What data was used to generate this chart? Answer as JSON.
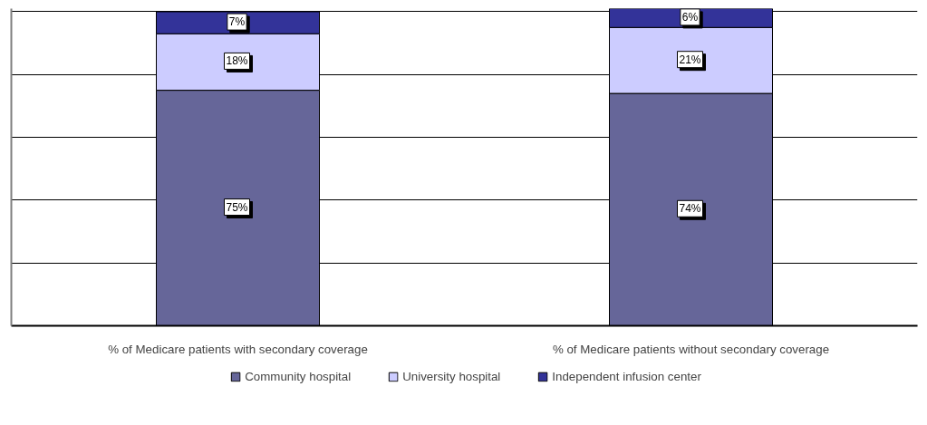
{
  "chart_data": {
    "type": "bar",
    "stacked": true,
    "categories": [
      "% of Medicare patients with secondary coverage",
      "% of Medicare patients without secondary coverage"
    ],
    "series": [
      {
        "name": "Community hospital",
        "color": "#666699",
        "values": [
          75,
          74
        ],
        "value_labels": [
          "75%",
          "74%"
        ]
      },
      {
        "name": "University hospital",
        "color": "#ccccff",
        "values": [
          18,
          21
        ],
        "value_labels": [
          "18%",
          "21%"
        ]
      },
      {
        "name": "Independent infusion center",
        "color": "#333399",
        "values": [
          7,
          6
        ],
        "value_labels": [
          "7%",
          "6%"
        ]
      }
    ],
    "ylim": [
      0,
      101
    ],
    "yticks": [
      {
        "value": 0,
        "label": null
      },
      {
        "value": 20,
        "label": null
      },
      {
        "value": 40,
        "label": null
      },
      {
        "value": 60,
        "label": null
      },
      {
        "value": 80,
        "label": null
      },
      {
        "value": 100,
        "label": null
      }
    ],
    "grid": "y",
    "legend": "bottom",
    "tick_labels": "x"
  }
}
